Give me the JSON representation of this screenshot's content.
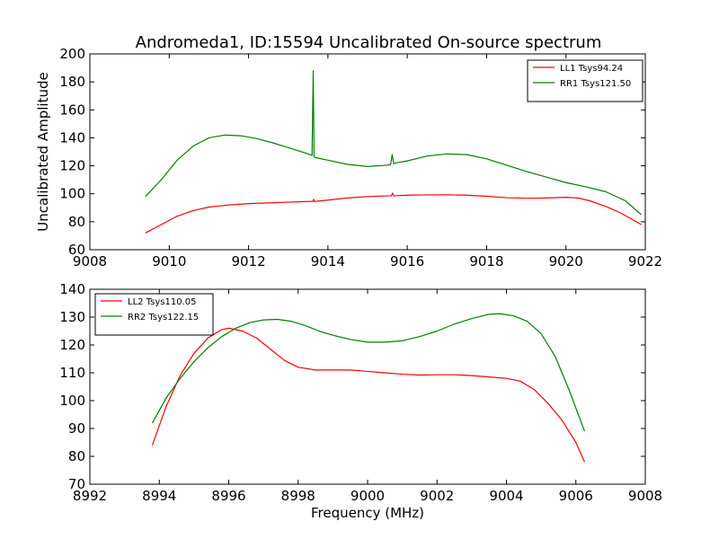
{
  "title": "Andromeda1, ID:15594 Uncalibrated On-source spectrum",
  "colors": {
    "red": "#ff0000",
    "green": "#008000"
  },
  "chart_data": [
    {
      "type": "line",
      "ylabel": "Uncalibrated Amplitude",
      "xlabel": "",
      "xlim": [
        9008,
        9022
      ],
      "ylim": [
        60,
        200
      ],
      "xticks": [
        9008,
        9010,
        9012,
        9014,
        9016,
        9018,
        9020,
        9022
      ],
      "yticks": [
        60,
        80,
        100,
        120,
        140,
        160,
        180,
        200
      ],
      "legend": "top-right",
      "series": [
        {
          "name": "LL1 Tsys94.24",
          "color": "#ff0000",
          "x": [
            9009.4,
            9009.8,
            9010.2,
            9010.6,
            9011.0,
            9011.5,
            9012.0,
            9012.5,
            9013.0,
            9013.5,
            9013.62,
            9013.64,
            9013.66,
            9014.0,
            9014.5,
            9015.0,
            9015.5,
            9015.6,
            9015.63,
            9015.66,
            9016.0,
            9016.5,
            9017.0,
            9017.5,
            9018.0,
            9018.5,
            9019.0,
            9019.5,
            9020.0,
            9020.3,
            9020.6,
            9021.0,
            9021.4,
            9021.9
          ],
          "values": [
            72,
            78,
            84,
            88,
            90.5,
            92,
            93,
            93.5,
            94,
            94.5,
            94.5,
            96,
            94.5,
            95.5,
            97,
            98,
            98.5,
            98.5,
            100.5,
            98.5,
            99,
            99.2,
            99.3,
            99,
            98.2,
            97.2,
            96.8,
            97,
            97.5,
            97,
            95,
            91,
            86,
            78
          ]
        },
        {
          "name": "RR1 Tsys121.50",
          "color": "#008000",
          "x": [
            9009.4,
            9009.8,
            9010.2,
            9010.6,
            9011.0,
            9011.4,
            9011.8,
            9012.2,
            9012.6,
            9013.0,
            9013.4,
            9013.6,
            9013.63,
            9013.65,
            9013.67,
            9014.0,
            9014.5,
            9015.0,
            9015.5,
            9015.58,
            9015.62,
            9015.66,
            9015.7,
            9016.0,
            9016.5,
            9017.0,
            9017.5,
            9018.0,
            9018.5,
            9019.0,
            9019.5,
            9020.0,
            9020.5,
            9021.0,
            9021.5,
            9021.9
          ],
          "values": [
            98,
            110,
            124,
            134,
            140,
            142,
            141.5,
            139.5,
            136.5,
            133,
            129.5,
            127.5,
            188,
            126.5,
            126,
            124,
            121,
            119.5,
            120.5,
            121,
            128,
            121.5,
            122,
            123.5,
            127,
            128.5,
            128,
            125,
            120.5,
            116,
            112,
            108,
            105,
            101.5,
            95,
            85
          ]
        }
      ]
    },
    {
      "type": "line",
      "ylabel": "",
      "xlabel": "Frequency (MHz)",
      "xlim": [
        8992,
        9008
      ],
      "ylim": [
        70,
        140
      ],
      "xticks": [
        8992,
        8994,
        8996,
        8998,
        9000,
        9002,
        9004,
        9006,
        9008
      ],
      "yticks": [
        70,
        80,
        90,
        100,
        110,
        120,
        130,
        140
      ],
      "legend": "top-left",
      "series": [
        {
          "name": "LL2 Tsys110.05",
          "color": "#ff0000",
          "x": [
            8993.8,
            8994.2,
            8994.6,
            8995.0,
            8995.4,
            8995.8,
            8996.0,
            8996.4,
            8996.8,
            8997.2,
            8997.6,
            8998.0,
            8998.5,
            8999.0,
            8999.5,
            9000.0,
            9000.5,
            9001.0,
            9001.5,
            9002.0,
            9002.5,
            9003.0,
            9003.5,
            9004.0,
            9004.4,
            9004.8,
            9005.2,
            9005.6,
            9006.0,
            9006.25
          ],
          "values": [
            84,
            98,
            109,
            117,
            122.5,
            125.5,
            126,
            125,
            122.5,
            118.5,
            114.5,
            112,
            111,
            111,
            111,
            110.5,
            110,
            109.5,
            109.2,
            109.3,
            109.3,
            109,
            108.5,
            108,
            107,
            104,
            99,
            93,
            85,
            78
          ]
        },
        {
          "name": "RR2 Tsys122.15",
          "color": "#008000",
          "x": [
            8993.8,
            8994.2,
            8994.6,
            8995.0,
            8995.4,
            8995.8,
            8996.2,
            8996.6,
            8997.0,
            8997.4,
            8997.8,
            8998.2,
            8998.6,
            8999.0,
            8999.5,
            9000.0,
            9000.5,
            9001.0,
            9001.5,
            9002.0,
            9002.5,
            9003.0,
            9003.5,
            9003.8,
            9004.2,
            9004.6,
            9005.0,
            9005.4,
            9005.8,
            9006.25
          ],
          "values": [
            92,
            101,
            108,
            114,
            119,
            123,
            126,
            128,
            129,
            129.2,
            128.5,
            127,
            125,
            123.5,
            122,
            121,
            121,
            121.5,
            123,
            125,
            127.5,
            129.5,
            131,
            131.2,
            130.5,
            128.5,
            124,
            116,
            104,
            89
          ]
        }
      ]
    }
  ]
}
